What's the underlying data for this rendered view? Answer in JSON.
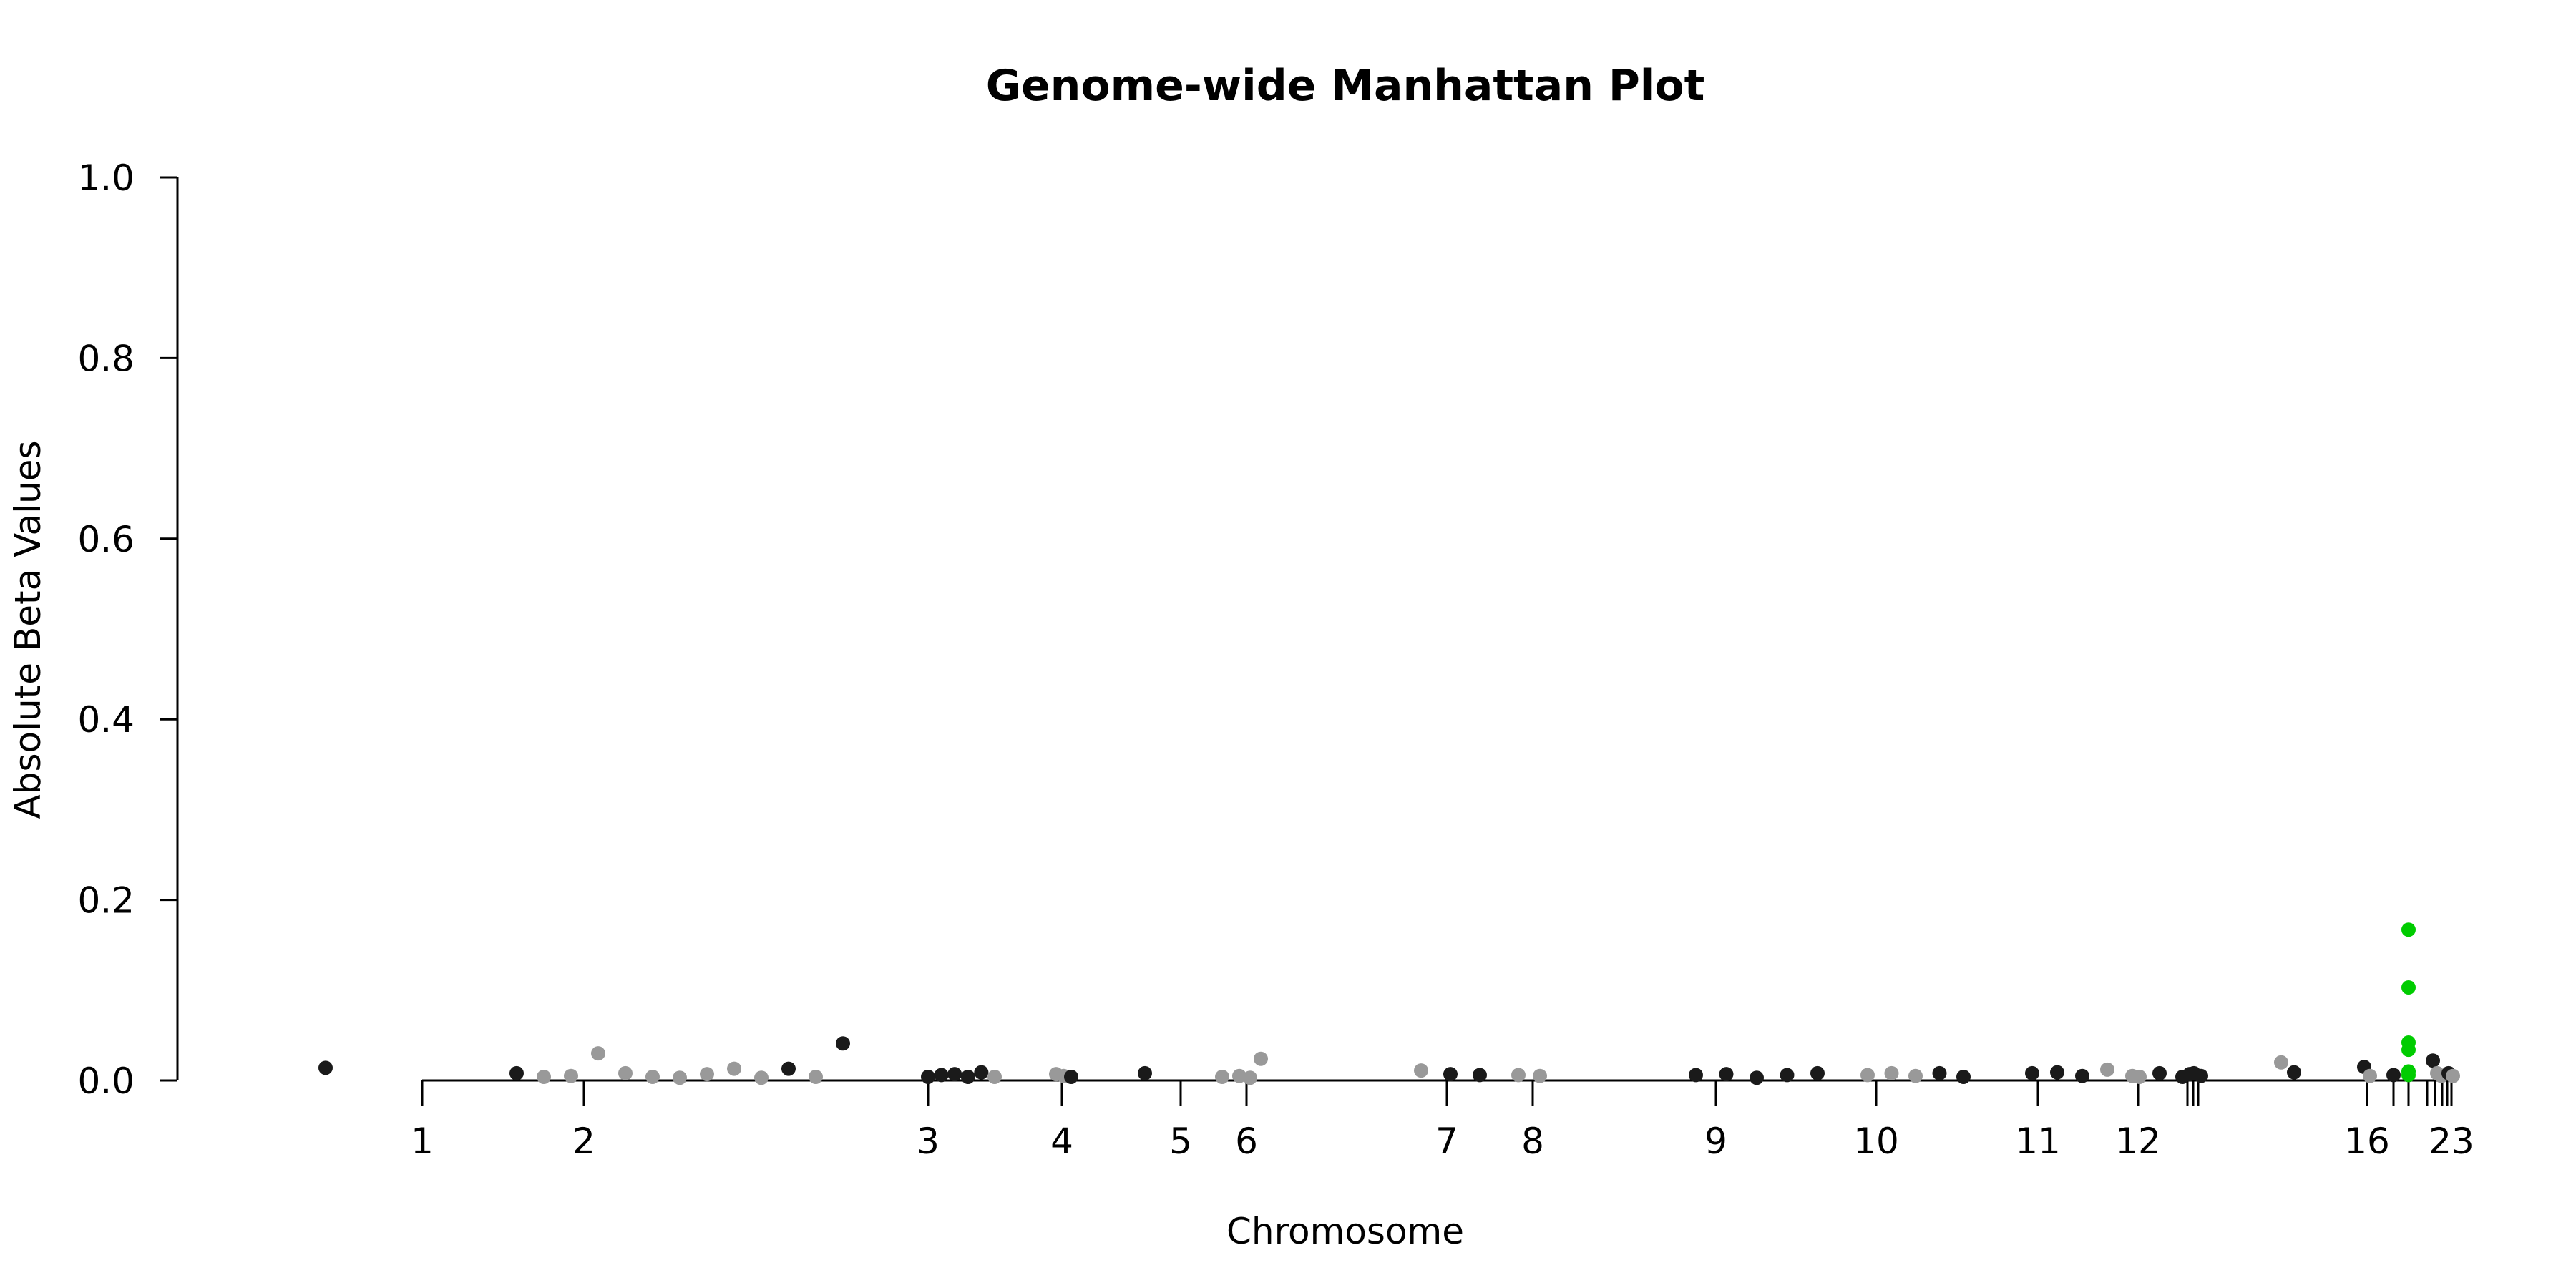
{
  "chart_data": {
    "type": "scatter",
    "title": "Genome-wide Manhattan Plot",
    "xlabel": "Chromosome",
    "ylabel": "Absolute Beta Values",
    "ylim": [
      0,
      1
    ],
    "y_ticks": [
      "0.0",
      "0.2",
      "0.4",
      "0.6",
      "0.8",
      "1.0"
    ],
    "x_tick_labels": [
      "1",
      "2",
      "3",
      "4",
      "5",
      "6",
      "7",
      "8",
      "9",
      "10",
      "11",
      "12",
      "16",
      "23"
    ],
    "minor_ticks_unlabeled": [
      "13",
      "14",
      "15",
      "17",
      "18",
      "19",
      "20",
      "21",
      "22"
    ],
    "grid": false,
    "legend": "none",
    "colors": {
      "odd_chromosome": "#1a1a1a",
      "even_chromosome": "#999999",
      "highlight": "#00cc00",
      "axis": "#000000"
    },
    "points": [
      {
        "chr": "1",
        "y": 0.014,
        "color": "dark"
      },
      {
        "chr": "2",
        "y": 0.008,
        "color": "dark"
      },
      {
        "chr": "2",
        "y": 0.004,
        "color": "light"
      },
      {
        "chr": "2",
        "y": 0.005,
        "color": "light"
      },
      {
        "chr": "2",
        "y": 0.03,
        "color": "light"
      },
      {
        "chr": "2",
        "y": 0.008,
        "color": "light"
      },
      {
        "chr": "2",
        "y": 0.004,
        "color": "light"
      },
      {
        "chr": "2",
        "y": 0.003,
        "color": "light"
      },
      {
        "chr": "2",
        "y": 0.007,
        "color": "light"
      },
      {
        "chr": "2",
        "y": 0.013,
        "color": "light"
      },
      {
        "chr": "2",
        "y": 0.003,
        "color": "light"
      },
      {
        "chr": "2",
        "y": 0.013,
        "color": "dark"
      },
      {
        "chr": "2",
        "y": 0.004,
        "color": "light"
      },
      {
        "chr": "2",
        "y": 0.041,
        "color": "dark"
      },
      {
        "chr": "3",
        "y": 0.004,
        "color": "dark"
      },
      {
        "chr": "3",
        "y": 0.006,
        "color": "dark"
      },
      {
        "chr": "3",
        "y": 0.007,
        "color": "dark"
      },
      {
        "chr": "3",
        "y": 0.004,
        "color": "dark"
      },
      {
        "chr": "3",
        "y": 0.009,
        "color": "dark"
      },
      {
        "chr": "3",
        "y": 0.004,
        "color": "light"
      },
      {
        "chr": "4",
        "y": 0.007,
        "color": "light"
      },
      {
        "chr": "4",
        "y": 0.005,
        "color": "light"
      },
      {
        "chr": "4",
        "y": 0.004,
        "color": "dark"
      },
      {
        "chr": "5",
        "y": 0.008,
        "color": "dark"
      },
      {
        "chr": "5",
        "y": 0.004,
        "color": "light"
      },
      {
        "chr": "6",
        "y": 0.005,
        "color": "light"
      },
      {
        "chr": "6",
        "y": 0.003,
        "color": "light"
      },
      {
        "chr": "6",
        "y": 0.024,
        "color": "light"
      },
      {
        "chr": "7",
        "y": 0.011,
        "color": "light"
      },
      {
        "chr": "7",
        "y": 0.007,
        "color": "dark"
      },
      {
        "chr": "7",
        "y": 0.006,
        "color": "dark"
      },
      {
        "chr": "8",
        "y": 0.006,
        "color": "light"
      },
      {
        "chr": "8",
        "y": 0.005,
        "color": "light"
      },
      {
        "chr": "9",
        "y": 0.006,
        "color": "dark"
      },
      {
        "chr": "9",
        "y": 0.007,
        "color": "dark"
      },
      {
        "chr": "9",
        "y": 0.003,
        "color": "dark"
      },
      {
        "chr": "9",
        "y": 0.006,
        "color": "dark"
      },
      {
        "chr": "9",
        "y": 0.008,
        "color": "dark"
      },
      {
        "chr": "10",
        "y": 0.006,
        "color": "light"
      },
      {
        "chr": "10",
        "y": 0.008,
        "color": "light"
      },
      {
        "chr": "10",
        "y": 0.005,
        "color": "light"
      },
      {
        "chr": "10",
        "y": 0.008,
        "color": "dark"
      },
      {
        "chr": "10",
        "y": 0.004,
        "color": "dark"
      },
      {
        "chr": "11",
        "y": 0.008,
        "color": "dark"
      },
      {
        "chr": "11",
        "y": 0.009,
        "color": "dark"
      },
      {
        "chr": "11",
        "y": 0.005,
        "color": "dark"
      },
      {
        "chr": "11",
        "y": 0.012,
        "color": "light"
      },
      {
        "chr": "11",
        "y": 0.005,
        "color": "light"
      },
      {
        "chr": "12",
        "y": 0.004,
        "color": "light"
      },
      {
        "chr": "12",
        "y": 0.008,
        "color": "dark"
      },
      {
        "chr": "13",
        "y": 0.004,
        "color": "dark"
      },
      {
        "chr": "13",
        "y": 0.007,
        "color": "dark"
      },
      {
        "chr": "14",
        "y": 0.008,
        "color": "dark"
      },
      {
        "chr": "14",
        "y": 0.005,
        "color": "dark"
      },
      {
        "chr": "15",
        "y": 0.02,
        "color": "light"
      },
      {
        "chr": "15",
        "y": 0.009,
        "color": "dark"
      },
      {
        "chr": "16",
        "y": 0.015,
        "color": "dark"
      },
      {
        "chr": "16",
        "y": 0.005,
        "color": "light"
      },
      {
        "chr": "17",
        "y": 0.006,
        "color": "dark"
      },
      {
        "chr": "18",
        "y": 0.167,
        "color": "highlight"
      },
      {
        "chr": "18",
        "y": 0.103,
        "color": "highlight"
      },
      {
        "chr": "18",
        "y": 0.042,
        "color": "highlight"
      },
      {
        "chr": "18",
        "y": 0.034,
        "color": "highlight"
      },
      {
        "chr": "18",
        "y": 0.01,
        "color": "highlight"
      },
      {
        "chr": "18",
        "y": 0.006,
        "color": "highlight"
      },
      {
        "chr": "20",
        "y": 0.022,
        "color": "dark"
      },
      {
        "chr": "20",
        "y": 0.008,
        "color": "light"
      },
      {
        "chr": "21",
        "y": 0.005,
        "color": "light"
      },
      {
        "chr": "22",
        "y": 0.008,
        "color": "dark"
      },
      {
        "chr": "23",
        "y": 0.005,
        "color": "light"
      }
    ]
  }
}
